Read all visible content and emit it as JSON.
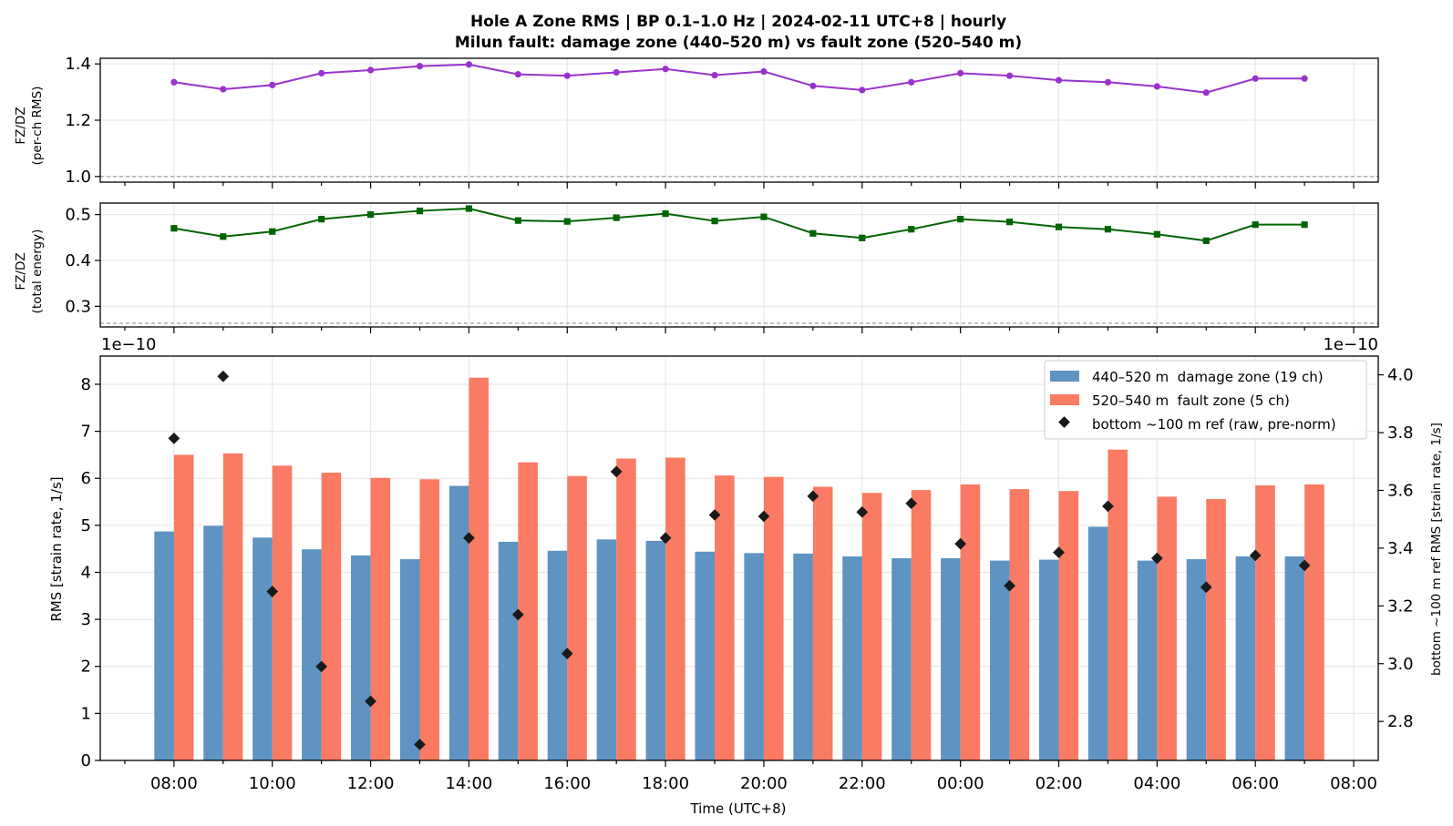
{
  "chart_data": [
    {
      "type": "line",
      "title": "Hole A Zone RMS  |  BP 0.1–1.0 Hz  |  2024-02-11 UTC+8  |  hourly",
      "subtitle": "Milun fault: damage zone (440–520 m) vs fault zone (520–540 m)",
      "ylabel_line1": "FZ/DZ",
      "ylabel_line2": "(per-ch RMS)",
      "ylim": [
        0.98,
        1.42
      ],
      "yticks": [
        "1.0",
        "1.2",
        "1.4"
      ],
      "reference_line": 1.0,
      "color": "#9932CC",
      "x_hours": [
        0,
        1,
        2,
        3,
        4,
        5,
        6,
        7,
        8,
        9,
        10,
        11,
        12,
        13,
        14,
        15,
        16,
        17,
        18,
        19,
        20,
        21,
        22,
        23
      ],
      "values": [
        1.335,
        1.31,
        1.325,
        1.367,
        1.378,
        1.392,
        1.398,
        1.363,
        1.358,
        1.37,
        1.382,
        1.36,
        1.373,
        1.322,
        1.307,
        1.335,
        1.367,
        1.358,
        1.342,
        1.335,
        1.32,
        1.298,
        1.348,
        1.348
      ]
    },
    {
      "type": "line",
      "ylabel_line1": "FZ/DZ",
      "ylabel_line2": "(total energy)",
      "ylim": [
        0.255,
        0.525
      ],
      "yticks": [
        "0.3",
        "0.4",
        "0.5"
      ],
      "reference_line": 0.263,
      "color": "#006400",
      "x_hours": [
        0,
        1,
        2,
        3,
        4,
        5,
        6,
        7,
        8,
        9,
        10,
        11,
        12,
        13,
        14,
        15,
        16,
        17,
        18,
        19,
        20,
        21,
        22,
        23
      ],
      "values": [
        0.47,
        0.452,
        0.463,
        0.49,
        0.5,
        0.508,
        0.513,
        0.487,
        0.485,
        0.493,
        0.502,
        0.486,
        0.495,
        0.459,
        0.449,
        0.468,
        0.49,
        0.484,
        0.473,
        0.468,
        0.457,
        0.443,
        0.478,
        0.478
      ]
    },
    {
      "type": "bar",
      "ylabel": "RMS  [strain rate, 1/s]",
      "ylabel_right": "bottom ~100 m ref RMS  [strain rate, 1/s]",
      "xlabel": "Time (UTC+8)",
      "offset_left": "1e−10",
      "offset_right": "1e−10",
      "ylim": [
        0,
        8.6
      ],
      "yticks": [
        "0",
        "1",
        "2",
        "3",
        "4",
        "5",
        "6",
        "7",
        "8"
      ],
      "ylim_right": [
        2.665,
        4.065
      ],
      "yticks_right": [
        "2.8",
        "3.0",
        "3.2",
        "3.4",
        "3.6",
        "3.8",
        "4.0"
      ],
      "xticks": [
        "08:00",
        "10:00",
        "12:00",
        "14:00",
        "16:00",
        "18:00",
        "20:00",
        "22:00",
        "00:00",
        "02:00",
        "04:00",
        "06:00",
        "08:00"
      ],
      "x_hours": [
        0,
        1,
        2,
        3,
        4,
        5,
        6,
        7,
        8,
        9,
        10,
        11,
        12,
        13,
        14,
        15,
        16,
        17,
        18,
        19,
        20,
        21,
        22,
        23
      ],
      "series": [
        {
          "name": "440–520 m  damage zone (19 ch)",
          "color": "#5f93c1",
          "values": [
            4.87,
            4.99,
            4.74,
            4.49,
            4.36,
            4.28,
            5.84,
            4.65,
            4.46,
            4.7,
            4.67,
            4.44,
            4.41,
            4.4,
            4.34,
            4.3,
            4.3,
            4.25,
            4.27,
            4.97,
            4.25,
            4.28,
            4.34,
            4.34
          ]
        },
        {
          "name": "520–540 m  fault zone (5 ch)",
          "color": "#fa7a64",
          "values": [
            6.5,
            6.53,
            6.27,
            6.12,
            6.01,
            5.98,
            8.14,
            6.34,
            6.05,
            6.42,
            6.44,
            6.06,
            6.03,
            5.82,
            5.69,
            5.75,
            5.87,
            5.77,
            5.73,
            6.61,
            5.61,
            5.56,
            5.85,
            5.87
          ]
        },
        {
          "name": "bottom ~100 m ref (raw, pre-norm)",
          "color": "#1a1a1a",
          "axis": "right",
          "values": [
            3.78,
            3.995,
            3.25,
            2.99,
            2.87,
            2.72,
            3.435,
            3.17,
            3.035,
            3.665,
            3.435,
            3.515,
            3.51,
            3.58,
            3.525,
            3.555,
            3.415,
            3.27,
            3.385,
            3.545,
            3.365,
            3.265,
            3.375,
            3.34
          ]
        }
      ]
    }
  ]
}
